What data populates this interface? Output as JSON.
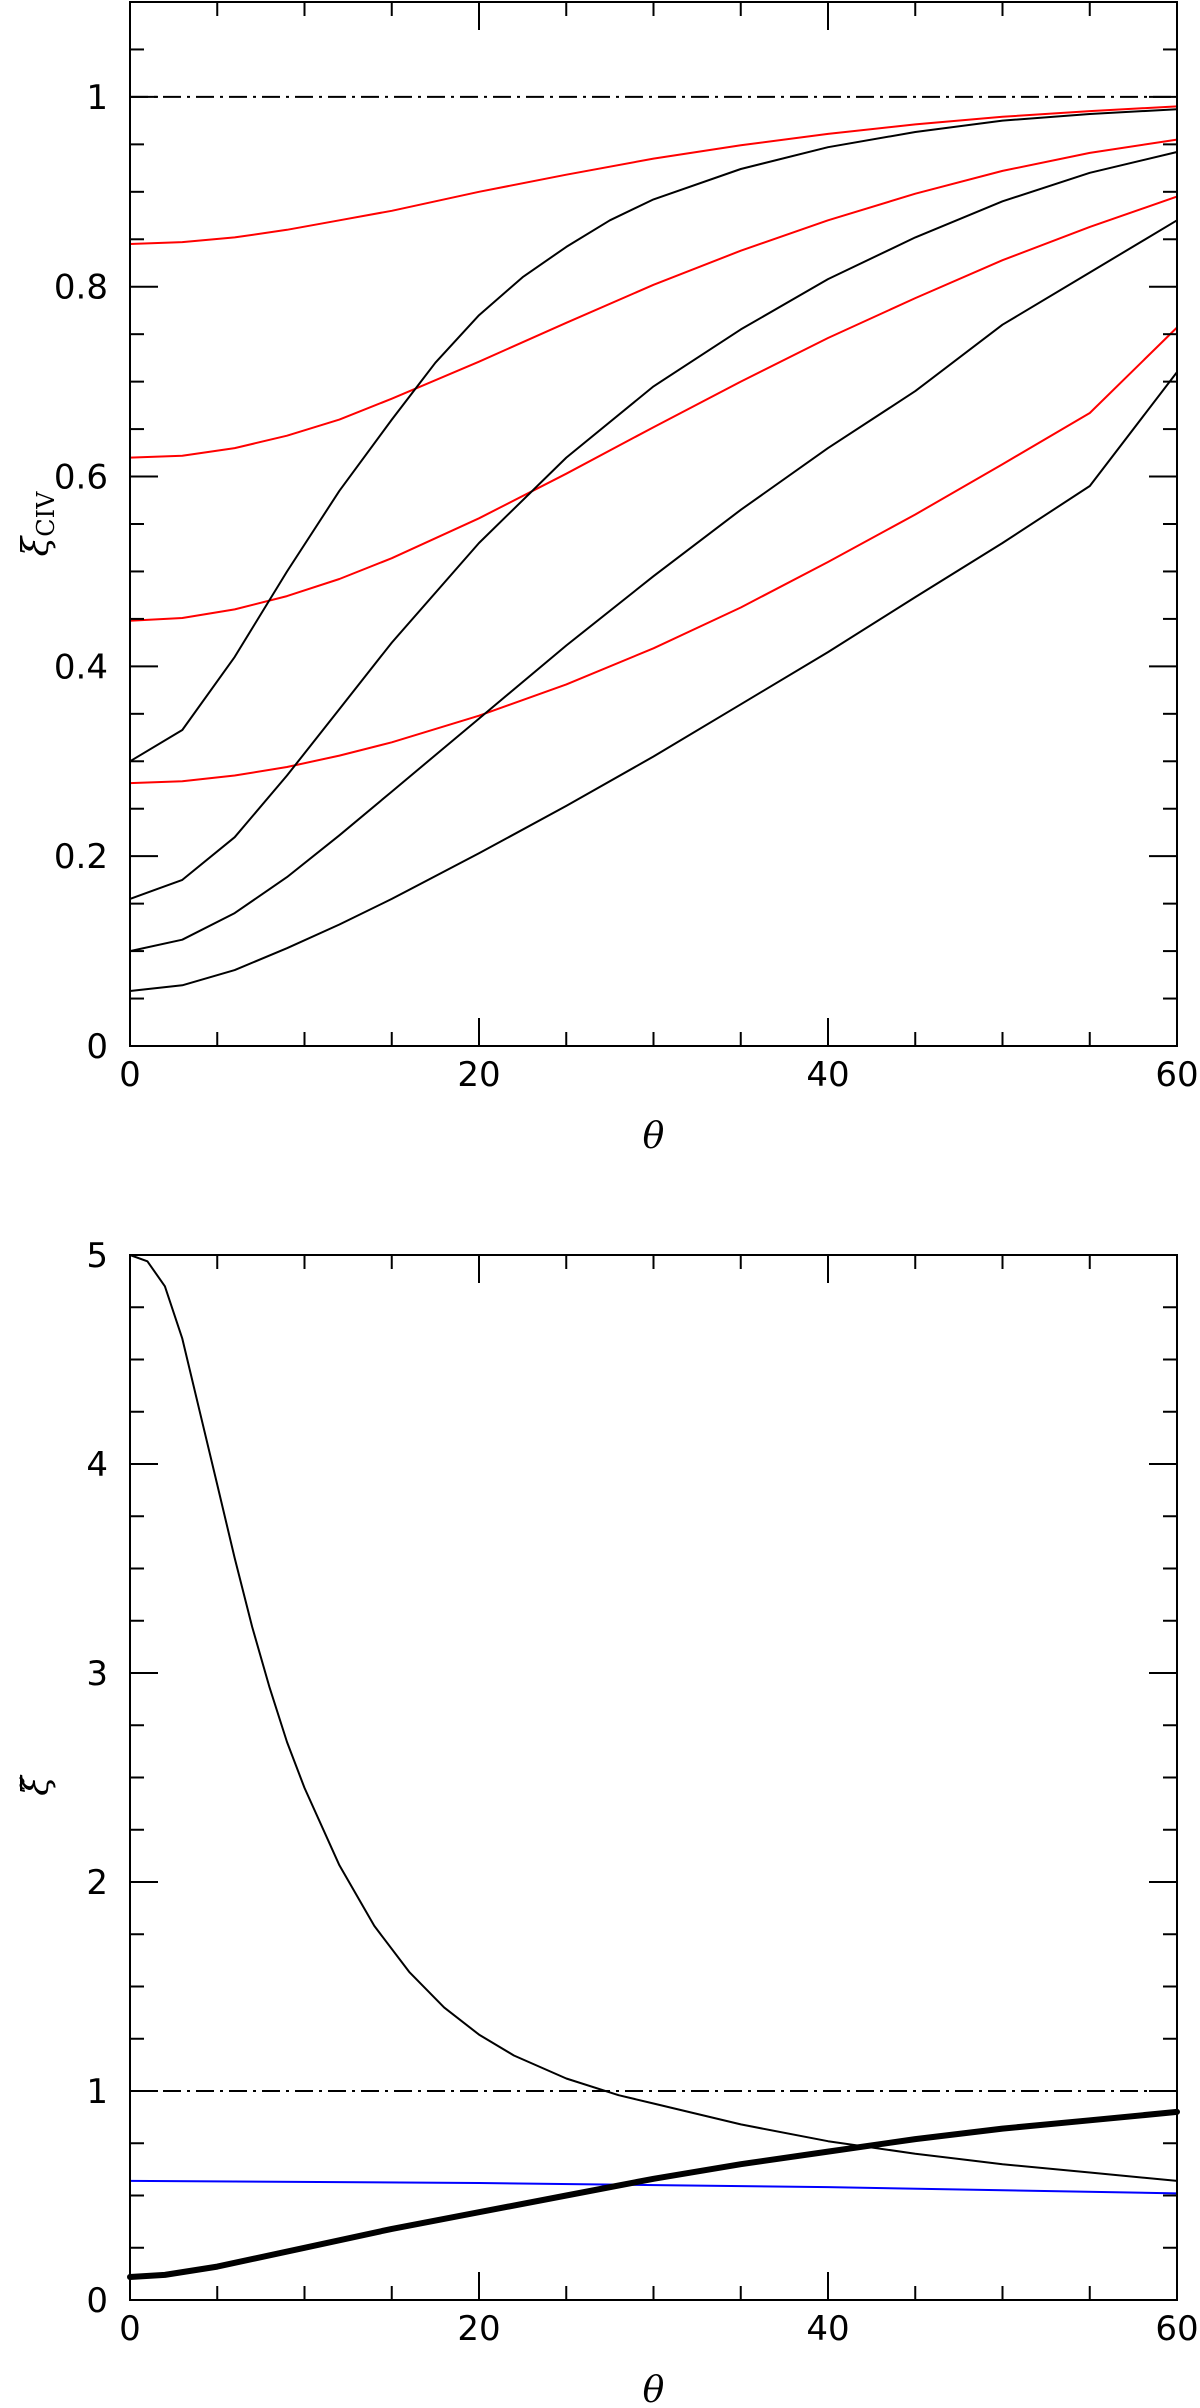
{
  "chart_data": [
    {
      "type": "line",
      "title": "",
      "xlabel": "θ",
      "ylabel": "ξ",
      "ylabel_sub": "CIV",
      "xlim": [
        0,
        60
      ],
      "ylim": [
        0,
        1.1
      ],
      "xticks": [
        0,
        20,
        40,
        60
      ],
      "xtick_labels": [
        "0",
        "20",
        "40",
        "60"
      ],
      "yticks": [
        0,
        0.2,
        0.4,
        0.6,
        0.8,
        1
      ],
      "ytick_labels": [
        "0",
        "0.2",
        "0.4",
        "0.6",
        "0.8",
        "1"
      ],
      "grid": false,
      "reference_line": {
        "y": 1,
        "style": "dash-dot",
        "color": "#000000"
      },
      "series": [
        {
          "color": "#ff0000",
          "width": 2,
          "x": [
            0,
            3,
            6,
            9,
            12,
            15,
            20,
            25,
            30,
            35,
            40,
            45,
            50,
            55,
            60
          ],
          "values": [
            0.845,
            0.847,
            0.852,
            0.86,
            0.87,
            0.88,
            0.9,
            0.918,
            0.935,
            0.949,
            0.961,
            0.971,
            0.979,
            0.985,
            0.99
          ]
        },
        {
          "color": "#ff0000",
          "width": 2,
          "x": [
            0,
            3,
            6,
            9,
            12,
            15,
            20,
            25,
            30,
            35,
            40,
            45,
            50,
            55,
            60
          ],
          "values": [
            0.62,
            0.622,
            0.63,
            0.643,
            0.66,
            0.682,
            0.721,
            0.762,
            0.802,
            0.838,
            0.87,
            0.898,
            0.922,
            0.941,
            0.955
          ]
        },
        {
          "color": "#ff0000",
          "width": 2,
          "x": [
            0,
            3,
            6,
            9,
            12,
            15,
            20,
            25,
            30,
            35,
            40,
            45,
            50,
            55,
            60
          ],
          "values": [
            0.448,
            0.451,
            0.46,
            0.474,
            0.492,
            0.514,
            0.556,
            0.603,
            0.652,
            0.7,
            0.746,
            0.788,
            0.828,
            0.863,
            0.895
          ]
        },
        {
          "color": "#ff0000",
          "width": 2,
          "x": [
            0,
            3,
            6,
            9,
            12,
            15,
            20,
            25,
            30,
            35,
            40,
            45,
            50,
            55,
            60
          ],
          "values": [
            0.277,
            0.279,
            0.285,
            0.294,
            0.306,
            0.32,
            0.348,
            0.381,
            0.419,
            0.462,
            0.51,
            0.56,
            0.613,
            0.667,
            0.757
          ]
        },
        {
          "color": "#000000",
          "width": 2,
          "x": [
            0,
            3,
            6,
            9,
            12,
            15,
            17.5,
            20,
            22.5,
            25,
            27.5,
            30,
            35,
            40,
            45,
            50,
            55,
            60
          ],
          "values": [
            0.3,
            0.333,
            0.41,
            0.5,
            0.585,
            0.66,
            0.72,
            0.77,
            0.81,
            0.842,
            0.87,
            0.892,
            0.924,
            0.947,
            0.963,
            0.975,
            0.982,
            0.987
          ]
        },
        {
          "color": "#000000",
          "width": 2,
          "x": [
            0,
            3,
            6,
            9,
            12,
            15,
            20,
            25,
            30,
            35,
            40,
            45,
            50,
            55,
            60
          ],
          "values": [
            0.155,
            0.175,
            0.22,
            0.285,
            0.355,
            0.425,
            0.53,
            0.62,
            0.695,
            0.755,
            0.808,
            0.852,
            0.89,
            0.92,
            0.942
          ]
        },
        {
          "color": "#000000",
          "width": 2,
          "x": [
            0,
            3,
            6,
            9,
            12,
            15,
            20,
            25,
            30,
            35,
            40,
            45,
            50,
            55,
            60
          ],
          "values": [
            0.1,
            0.112,
            0.14,
            0.178,
            0.222,
            0.268,
            0.345,
            0.422,
            0.495,
            0.565,
            0.63,
            0.69,
            0.76,
            0.815,
            0.87
          ]
        },
        {
          "color": "#000000",
          "width": 2,
          "x": [
            0,
            3,
            6,
            9,
            12,
            15,
            20,
            25,
            30,
            35,
            40,
            45,
            50,
            55,
            60
          ],
          "values": [
            0.058,
            0.064,
            0.08,
            0.103,
            0.128,
            0.155,
            0.203,
            0.253,
            0.305,
            0.36,
            0.415,
            0.473,
            0.53,
            0.59,
            0.71
          ]
        }
      ]
    },
    {
      "type": "line",
      "title": "",
      "xlabel": "θ",
      "ylabel": "ξ̃",
      "xlim": [
        0,
        60
      ],
      "ylim": [
        0,
        5
      ],
      "xticks": [
        0,
        20,
        40,
        60
      ],
      "xtick_labels": [
        "0",
        "20",
        "40",
        "60"
      ],
      "yticks": [
        0,
        1,
        2,
        3,
        4,
        5
      ],
      "ytick_labels": [
        "0",
        "1",
        "2",
        "3",
        "4",
        "5"
      ],
      "grid": false,
      "reference_line": {
        "y": 1,
        "style": "dash-dot",
        "color": "#000000"
      },
      "series": [
        {
          "color": "#000000",
          "width": 2,
          "x": [
            0,
            1,
            2,
            3,
            4,
            5,
            6,
            7,
            8,
            9,
            10,
            12,
            14,
            16,
            18,
            20,
            22,
            25,
            28,
            30,
            35,
            40,
            45,
            50,
            55,
            60
          ],
          "values": [
            5.0,
            4.97,
            4.85,
            4.6,
            4.25,
            3.9,
            3.55,
            3.22,
            2.93,
            2.67,
            2.45,
            2.08,
            1.79,
            1.57,
            1.4,
            1.27,
            1.17,
            1.06,
            0.98,
            0.94,
            0.84,
            0.76,
            0.7,
            0.65,
            0.61,
            0.57
          ]
        },
        {
          "color": "#0000ff",
          "width": 2,
          "x": [
            0,
            20,
            40,
            60
          ],
          "values": [
            0.57,
            0.56,
            0.54,
            0.51
          ]
        },
        {
          "color": "#000000",
          "width": 6,
          "x": [
            0,
            2,
            5,
            10,
            15,
            20,
            25,
            30,
            35,
            40,
            45,
            50,
            55,
            60
          ],
          "values": [
            0.11,
            0.12,
            0.16,
            0.25,
            0.34,
            0.42,
            0.5,
            0.58,
            0.65,
            0.71,
            0.77,
            0.82,
            0.86,
            0.9
          ]
        }
      ]
    }
  ]
}
